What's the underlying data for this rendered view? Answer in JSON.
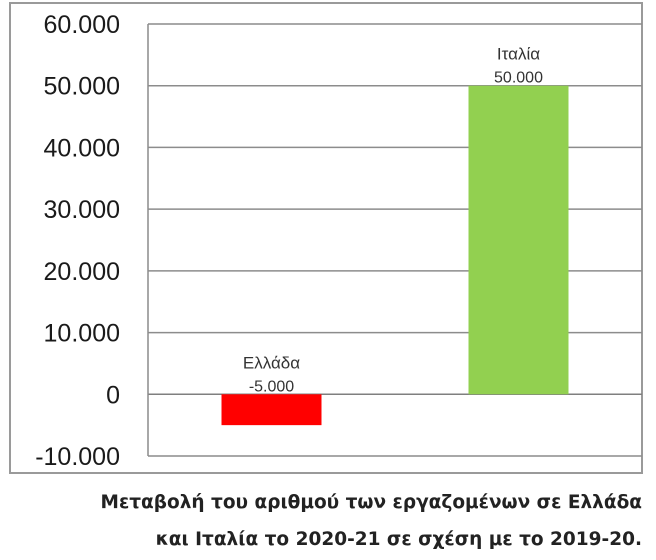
{
  "chart_data": {
    "type": "bar",
    "categories": [
      "Ελλάδα",
      "Ιταλία"
    ],
    "values": [
      -5000,
      50000
    ],
    "data_labels": [
      "-5.000",
      "50.000"
    ],
    "colors": [
      "#ff0000",
      "#92d050"
    ],
    "ylim": [
      -10000,
      60000
    ],
    "yticks": [
      60000,
      50000,
      40000,
      30000,
      20000,
      10000,
      0,
      -10000
    ],
    "ytick_labels": [
      "60.000",
      "50.000",
      "40.000",
      "30.000",
      "20.000",
      "10.000",
      "0",
      "-10.000"
    ],
    "grid": true,
    "title": "",
    "xlabel": "",
    "ylabel": ""
  },
  "caption": {
    "line1": "Μεταβολή του αριθμού των εργαζομένων σε Ελλάδα",
    "line2": "και Ιταλία το 2020-21 σε σχέση με το 2019-20."
  }
}
